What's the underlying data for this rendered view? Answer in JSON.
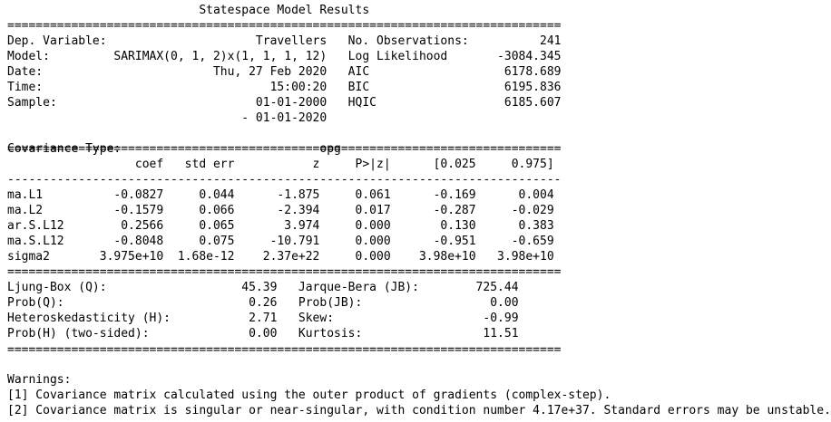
{
  "title": "Statespace Model Results",
  "header": {
    "dep_variable_label": "Dep. Variable:",
    "dep_variable_value": "Travellers",
    "model_label": "Model:",
    "model_value": "SARIMAX(0, 1, 2)x(1, 1, 1, 12)",
    "date_label": "Date:",
    "date_value": "Thu, 27 Feb 2020",
    "time_label": "Time:",
    "time_value": "15:00:20",
    "sample_label": "Sample:",
    "sample_start": "01-01-2000",
    "sample_end": "- 01-01-2020",
    "cov_type_label": "Covariance Type:",
    "cov_type_value": "opg",
    "nobs_label": "No. Observations:",
    "nobs_value": "241",
    "llf_label": "Log Likelihood",
    "llf_value": "-3084.345",
    "aic_label": "AIC",
    "aic_value": "6178.689",
    "bic_label": "BIC",
    "bic_value": "6195.836",
    "hqic_label": "HQIC",
    "hqic_value": "6185.607"
  },
  "coef_table": {
    "columns": [
      "coef",
      "std err",
      "z",
      "P>|z|",
      "[0.025",
      "0.975]"
    ],
    "rows": [
      {
        "name": "ma.L1",
        "values": [
          "-0.0827",
          "0.044",
          "-1.875",
          "0.061",
          "-0.169",
          "0.004"
        ]
      },
      {
        "name": "ma.L2",
        "values": [
          "-0.1579",
          "0.066",
          "-2.394",
          "0.017",
          "-0.287",
          "-0.029"
        ]
      },
      {
        "name": "ar.S.L12",
        "values": [
          "0.2566",
          "0.065",
          "3.974",
          "0.000",
          "0.130",
          "0.383"
        ]
      },
      {
        "name": "ma.S.L12",
        "values": [
          "-0.8048",
          "0.075",
          "-10.791",
          "0.000",
          "-0.951",
          "-0.659"
        ]
      },
      {
        "name": "sigma2",
        "values": [
          "3.975e+10",
          "1.68e-12",
          "2.37e+22",
          "0.000",
          "3.98e+10",
          "3.98e+10"
        ]
      }
    ]
  },
  "diagnostics": [
    {
      "left_label": "Ljung-Box (Q):",
      "left_value": "45.39",
      "right_label": "Jarque-Bera (JB):",
      "right_value": "725.44"
    },
    {
      "left_label": "Prob(Q):",
      "left_value": "0.26",
      "right_label": "Prob(JB):",
      "right_value": "0.00"
    },
    {
      "left_label": "Heteroskedasticity (H):",
      "left_value": "2.71",
      "right_label": "Skew:",
      "right_value": "-0.99"
    },
    {
      "left_label": "Prob(H) (two-sided):",
      "left_value": "0.00",
      "right_label": "Kurtosis:",
      "right_value": "11.51"
    }
  ],
  "warnings": {
    "title": "Warnings:",
    "items": [
      "[1] Covariance matrix calculated using the outer product of gradients (complex-step).",
      "[2] Covariance matrix is singular or near-singular, with condition number 4.17e+37. Standard errors may be unstable."
    ]
  }
}
